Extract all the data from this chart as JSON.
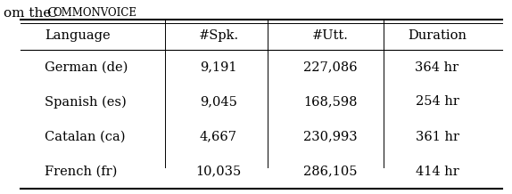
{
  "caption": "om the СOMMONVOICE",
  "caption_prefix": "om the ",
  "caption_smallcaps": "COMMONVOICE",
  "headers": [
    "Language",
    "#Spk.",
    "#Utt.",
    "Duration"
  ],
  "rows": [
    [
      "German (de)",
      "9,191",
      "227,086",
      "364 hr"
    ],
    [
      "Spanish (es)",
      "9,045",
      "168,598",
      "254 hr"
    ],
    [
      "Catalan (ca)",
      "4,667",
      "230,993",
      "361 hr"
    ],
    [
      "French (fr)",
      "10,035",
      "286,105",
      "414 hr"
    ]
  ],
  "bg_color": "#ffffff",
  "text_color": "#000000",
  "font_size": 10.5,
  "caption_font_size": 11
}
